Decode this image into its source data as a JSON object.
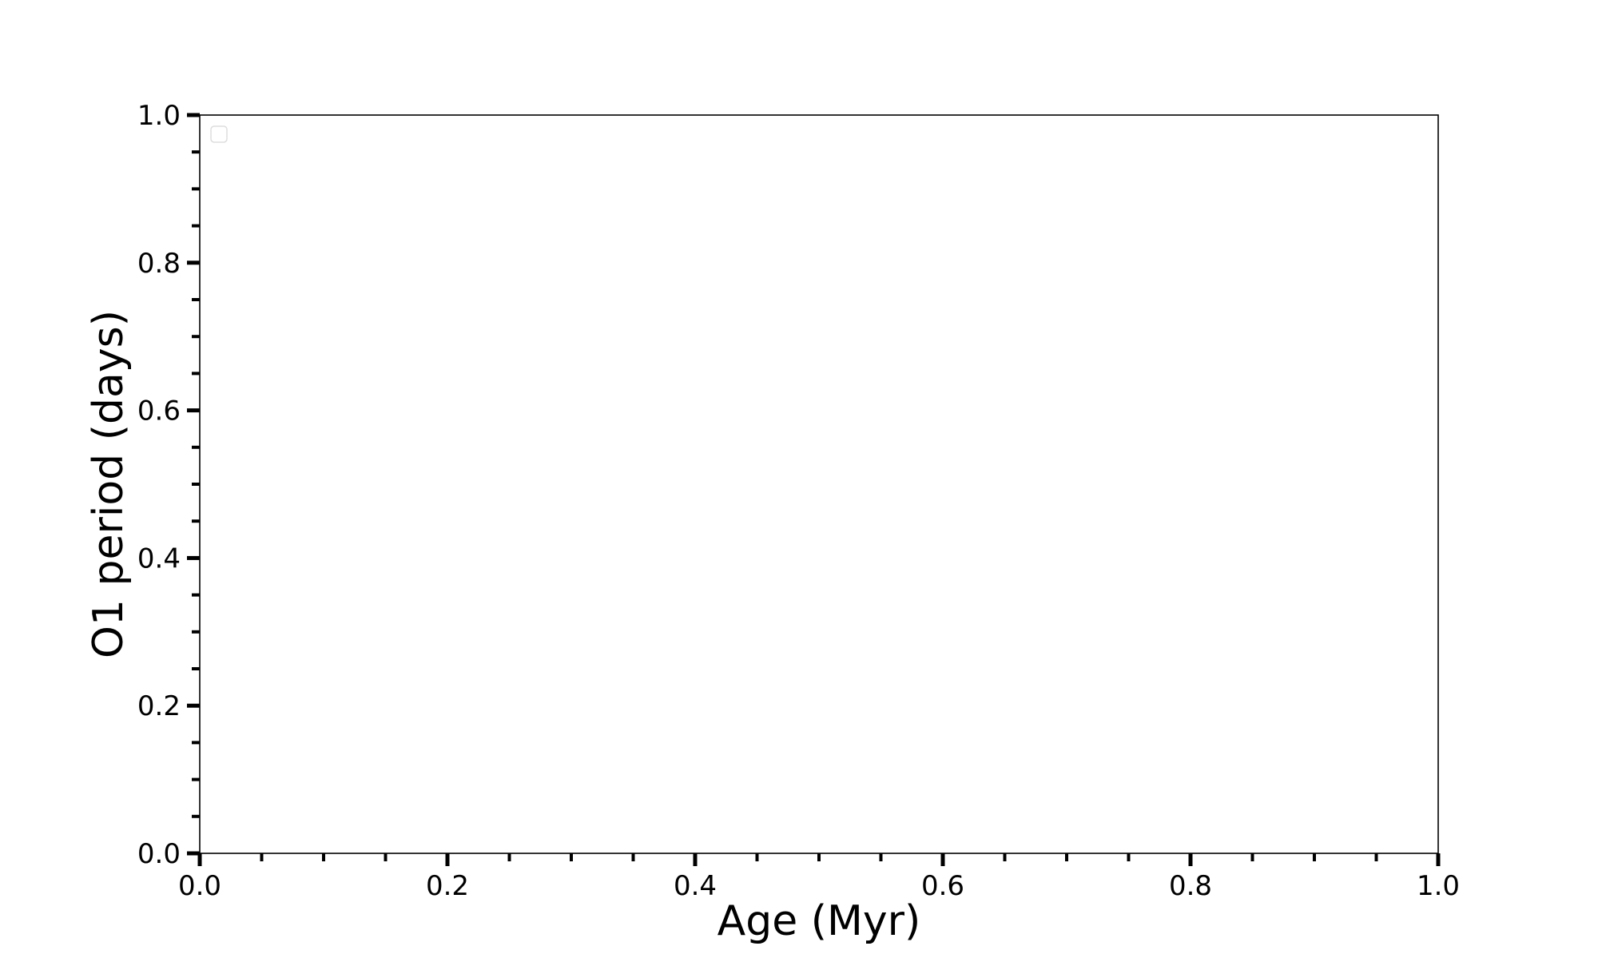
{
  "chart_data": {
    "type": "line",
    "title": "",
    "xlabel": "Age (Myr)",
    "ylabel": "O1 period (days)",
    "xlim": [
      0.0,
      1.0
    ],
    "ylim": [
      0.0,
      1.0
    ],
    "xticks": [
      "0.0",
      "0.2",
      "0.4",
      "0.6",
      "0.8",
      "1.0"
    ],
    "yticks": [
      "0.0",
      "0.2",
      "0.4",
      "0.6",
      "0.8",
      "1.0"
    ],
    "minor_tick_step": 0.05,
    "grid": false,
    "legend": "top-left, empty",
    "series": []
  }
}
